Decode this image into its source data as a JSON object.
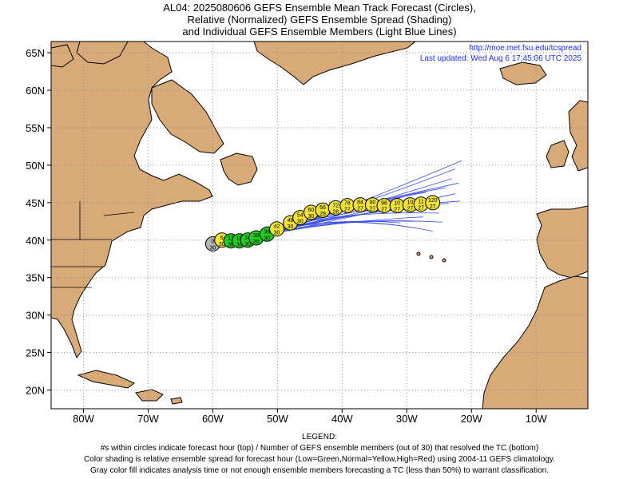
{
  "title": {
    "line1": "AL04: 2025080606 GEFS Ensemble Mean Track Forecast (Circles),",
    "line2": "Relative (Normalized) GEFS Ensemble Spread (Shading)",
    "line3": "and Individual GEFS Ensemble Members (Light Blue Lines)"
  },
  "header_info": {
    "url": "http://moe.met.fsu.edu/tcspread",
    "updated": "Last updated: Wed Aug 6 17:45:06 UTC 2025"
  },
  "axes": {
    "lon_ticks": [
      "80W",
      "70W",
      "60W",
      "50W",
      "40W",
      "30W",
      "20W",
      "10W"
    ],
    "lat_ticks": [
      "65N",
      "60N",
      "55N",
      "50N",
      "45N",
      "40N",
      "35N",
      "30N",
      "25N",
      "20N"
    ]
  },
  "legend": {
    "title": "LEGEND:",
    "line1": "#s within circles indicate forecast hour (top) / Number of GEFS ensemble members (out of 30) that resolved the TC (bottom)",
    "line2": "Color shading is relative ensemble spread for forecast hour (Low=Green,Normal=Yellow,High=Red) using 2004-11 GEFS climatology.",
    "line3": "Gray color fill indicates analysis time or not enough ensemble members forecasting a TC (less than 50%) to warrant classification."
  },
  "colors": {
    "land": "#d8aa78",
    "ocean": "#ffffff",
    "member_track": "#3a4ee8",
    "low_spread": "#22cc22",
    "normal_spread": "#f0e23a",
    "analysis": "#b4b4b4"
  },
  "chart_data": {
    "type": "map-track",
    "lon_range": [
      -85,
      -2
    ],
    "lat_range": [
      17.5,
      66.5
    ],
    "track_points": [
      {
        "hour": "0",
        "members": "30",
        "lon": -60.0,
        "lat": 39.5,
        "spread": "analysis"
      },
      {
        "hour": "6",
        "members": "30",
        "lon": -58.6,
        "lat": 40.0,
        "spread": "normal"
      },
      {
        "hour": "12",
        "members": "30",
        "lon": -57.2,
        "lat": 39.9,
        "spread": "low"
      },
      {
        "hour": "18",
        "members": "30",
        "lon": -55.9,
        "lat": 39.9,
        "spread": "low"
      },
      {
        "hour": "24",
        "members": "30",
        "lon": -54.6,
        "lat": 40.0,
        "spread": "low"
      },
      {
        "hour": "30",
        "members": "30",
        "lon": -53.3,
        "lat": 40.3,
        "spread": "low"
      },
      {
        "hour": "36",
        "members": "30",
        "lon": -51.6,
        "lat": 40.8,
        "spread": "low"
      },
      {
        "hour": "42",
        "members": "30",
        "lon": -50.1,
        "lat": 41.5,
        "spread": "normal"
      },
      {
        "hour": "48",
        "members": "30",
        "lon": -48.0,
        "lat": 42.3,
        "spread": "normal"
      },
      {
        "hour": "54",
        "members": "30",
        "lon": -46.5,
        "lat": 43.0,
        "spread": "normal"
      },
      {
        "hour": "60",
        "members": "30",
        "lon": -44.8,
        "lat": 43.7,
        "spread": "normal"
      },
      {
        "hour": "66",
        "members": "29",
        "lon": -43.0,
        "lat": 44.0,
        "spread": "normal"
      },
      {
        "hour": "72",
        "members": "28",
        "lon": -41.0,
        "lat": 44.3,
        "spread": "normal"
      },
      {
        "hour": "78",
        "members": "27",
        "lon": -39.2,
        "lat": 44.6,
        "spread": "normal"
      },
      {
        "hour": "84",
        "members": "27",
        "lon": -37.2,
        "lat": 44.7,
        "spread": "normal"
      },
      {
        "hour": "90",
        "members": "27",
        "lon": -35.3,
        "lat": 44.7,
        "spread": "normal"
      },
      {
        "hour": "96",
        "members": "27",
        "lon": -33.5,
        "lat": 44.6,
        "spread": "normal"
      },
      {
        "hour": "10",
        "members": "27",
        "lon": -31.5,
        "lat": 44.6,
        "spread": "normal"
      },
      {
        "hour": "10",
        "members": "27",
        "lon": -29.5,
        "lat": 44.7,
        "spread": "normal"
      },
      {
        "hour": "11",
        "members": "27",
        "lon": -27.8,
        "lat": 44.8,
        "spread": "normal"
      },
      {
        "hour": "120",
        "members": "27",
        "lon": -26.0,
        "lat": 45.0,
        "spread": "normal"
      }
    ],
    "member_end_points": [
      [
        -21.5,
        50.6
      ],
      [
        -22.5,
        49.5
      ],
      [
        -23.0,
        48.2
      ],
      [
        -22.0,
        47.6
      ],
      [
        -24.0,
        47.0
      ],
      [
        -22.5,
        46.2
      ],
      [
        -25.0,
        45.6
      ],
      [
        -23.5,
        44.9
      ],
      [
        -26.5,
        44.3
      ],
      [
        -25.0,
        43.6
      ],
      [
        -27.5,
        43.1
      ],
      [
        -29.0,
        42.5
      ],
      [
        -31.0,
        42.3
      ],
      [
        -28.5,
        41.6
      ],
      [
        -26.0,
        41.2
      ],
      [
        -30.5,
        45.8
      ],
      [
        -32.5,
        44.0
      ],
      [
        -24.5,
        42.4
      ],
      [
        -27.0,
        46.4
      ],
      [
        -21.8,
        45.2
      ]
    ]
  }
}
